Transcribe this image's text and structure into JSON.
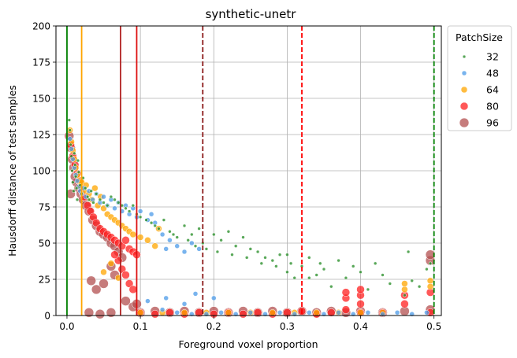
{
  "chart_data": {
    "type": "scatter",
    "title": "synthetic-unetr",
    "xlabel": "Foreground voxel proportion",
    "ylabel": "Hausdorff distance of test samples",
    "xlim": [
      -0.015,
      0.51
    ],
    "ylim": [
      0,
      200
    ],
    "x_ticks": [
      0.0,
      0.1,
      0.2,
      0.3,
      0.4,
      0.5
    ],
    "x_tick_labels": [
      "0.0",
      "0.1",
      "0.2",
      "0.3",
      "0.4",
      "0.5"
    ],
    "y_ticks": [
      0,
      25,
      50,
      75,
      100,
      125,
      150,
      175,
      200
    ],
    "y_tick_labels": [
      "0",
      "25",
      "50",
      "75",
      "100",
      "125",
      "150",
      "175",
      "200"
    ],
    "grid": true,
    "legend": {
      "title": "PatchSize",
      "placement": "outside-right-top",
      "entries": [
        "32",
        "48",
        "64",
        "80",
        "96"
      ]
    },
    "series": [
      {
        "name": "32",
        "color": "#228B22",
        "marker_size": 2,
        "points": [
          [
            0.003,
            135
          ],
          [
            0.004,
            128
          ],
          [
            0.005,
            118
          ],
          [
            0.006,
            110
          ],
          [
            0.007,
            100
          ],
          [
            0.008,
            92
          ],
          [
            0.009,
            86
          ],
          [
            0.01,
            112
          ],
          [
            0.011,
            104
          ],
          [
            0.012,
            96
          ],
          [
            0.013,
            88
          ],
          [
            0.014,
            80
          ],
          [
            0.015,
            107
          ],
          [
            0.016,
            99
          ],
          [
            0.018,
            90
          ],
          [
            0.02,
            84
          ],
          [
            0.022,
            95
          ],
          [
            0.025,
            88
          ],
          [
            0.028,
            82
          ],
          [
            0.03,
            80
          ],
          [
            0.033,
            86
          ],
          [
            0.036,
            78
          ],
          [
            0.04,
            84
          ],
          [
            0.045,
            80
          ],
          [
            0.05,
            78
          ],
          [
            0.055,
            76
          ],
          [
            0.06,
            82
          ],
          [
            0.065,
            80
          ],
          [
            0.07,
            78
          ],
          [
            0.075,
            76
          ],
          [
            0.08,
            74
          ],
          [
            0.085,
            72
          ],
          [
            0.09,
            76
          ],
          [
            0.095,
            70
          ],
          [
            0.1,
            68
          ],
          [
            0.108,
            66
          ],
          [
            0.115,
            64
          ],
          [
            0.12,
            62
          ],
          [
            0.125,
            60
          ],
          [
            0.132,
            66
          ],
          [
            0.14,
            58
          ],
          [
            0.145,
            56
          ],
          [
            0.15,
            54
          ],
          [
            0.16,
            62
          ],
          [
            0.165,
            52
          ],
          [
            0.17,
            56
          ],
          [
            0.175,
            48
          ],
          [
            0.18,
            60
          ],
          [
            0.185,
            50
          ],
          [
            0.19,
            46
          ],
          [
            0.2,
            56
          ],
          [
            0.205,
            44
          ],
          [
            0.21,
            52
          ],
          [
            0.22,
            58
          ],
          [
            0.225,
            42
          ],
          [
            0.23,
            48
          ],
          [
            0.24,
            54
          ],
          [
            0.245,
            40
          ],
          [
            0.25,
            46
          ],
          [
            0.26,
            44
          ],
          [
            0.265,
            36
          ],
          [
            0.27,
            40
          ],
          [
            0.28,
            38
          ],
          [
            0.285,
            34
          ],
          [
            0.29,
            42
          ],
          [
            0.3,
            30
          ],
          [
            0.305,
            36
          ],
          [
            0.31,
            26
          ],
          [
            0.32,
            34
          ],
          [
            0.33,
            40
          ],
          [
            0.34,
            28
          ],
          [
            0.345,
            36
          ],
          [
            0.35,
            32
          ],
          [
            0.36,
            20
          ],
          [
            0.37,
            38
          ],
          [
            0.38,
            26
          ],
          [
            0.39,
            34
          ],
          [
            0.4,
            30
          ],
          [
            0.41,
            18
          ],
          [
            0.42,
            36
          ],
          [
            0.43,
            28
          ],
          [
            0.44,
            22
          ],
          [
            0.46,
            14
          ],
          [
            0.465,
            44
          ],
          [
            0.47,
            24
          ],
          [
            0.48,
            20
          ],
          [
            0.49,
            32
          ],
          [
            0.495,
            36
          ],
          [
            0.3,
            42
          ],
          [
            0.33,
            26
          ]
        ]
      },
      {
        "name": "48",
        "color": "#4C9BE8",
        "marker_size": 3,
        "points": [
          [
            0.004,
            122
          ],
          [
            0.006,
            115
          ],
          [
            0.008,
            108
          ],
          [
            0.01,
            102
          ],
          [
            0.012,
            97
          ],
          [
            0.014,
            93
          ],
          [
            0.016,
            89
          ],
          [
            0.018,
            86
          ],
          [
            0.02,
            84
          ],
          [
            0.023,
            88
          ],
          [
            0.026,
            82
          ],
          [
            0.03,
            86
          ],
          [
            0.035,
            80
          ],
          [
            0.04,
            84
          ],
          [
            0.045,
            78
          ],
          [
            0.05,
            82
          ],
          [
            0.055,
            76
          ],
          [
            0.06,
            80
          ],
          [
            0.065,
            74
          ],
          [
            0.07,
            78
          ],
          [
            0.075,
            72
          ],
          [
            0.08,
            76
          ],
          [
            0.085,
            70
          ],
          [
            0.09,
            74
          ],
          [
            0.095,
            68
          ],
          [
            0.1,
            72
          ],
          [
            0.11,
            66
          ],
          [
            0.115,
            70
          ],
          [
            0.12,
            64
          ],
          [
            0.13,
            56
          ],
          [
            0.135,
            46
          ],
          [
            0.14,
            52
          ],
          [
            0.15,
            48
          ],
          [
            0.16,
            44
          ],
          [
            0.17,
            50
          ],
          [
            0.18,
            46
          ],
          [
            0.175,
            15
          ],
          [
            0.11,
            10
          ],
          [
            0.135,
            12
          ],
          [
            0.16,
            8
          ],
          [
            0.2,
            12
          ],
          [
            0.13,
            4
          ],
          [
            0.15,
            2
          ],
          [
            0.17,
            1
          ],
          [
            0.19,
            1
          ],
          [
            0.21,
            2
          ],
          [
            0.23,
            1
          ],
          [
            0.25,
            2
          ],
          [
            0.27,
            1
          ],
          [
            0.29,
            2
          ],
          [
            0.31,
            1
          ],
          [
            0.33,
            2
          ],
          [
            0.35,
            1
          ],
          [
            0.37,
            2
          ],
          [
            0.39,
            1
          ],
          [
            0.41,
            2
          ],
          [
            0.43,
            1
          ],
          [
            0.45,
            2
          ],
          [
            0.47,
            1
          ],
          [
            0.49,
            2
          ]
        ]
      },
      {
        "name": "64",
        "color": "#FFA500",
        "marker_size": 4,
        "points": [
          [
            0.004,
            128
          ],
          [
            0.006,
            120
          ],
          [
            0.008,
            114
          ],
          [
            0.01,
            108
          ],
          [
            0.012,
            102
          ],
          [
            0.014,
            97
          ],
          [
            0.016,
            93
          ],
          [
            0.018,
            89
          ],
          [
            0.02,
            92
          ],
          [
            0.023,
            86
          ],
          [
            0.026,
            90
          ],
          [
            0.03,
            84
          ],
          [
            0.034,
            80
          ],
          [
            0.038,
            88
          ],
          [
            0.042,
            76
          ],
          [
            0.046,
            82
          ],
          [
            0.05,
            74
          ],
          [
            0.055,
            70
          ],
          [
            0.06,
            68
          ],
          [
            0.065,
            66
          ],
          [
            0.07,
            64
          ],
          [
            0.075,
            62
          ],
          [
            0.08,
            60
          ],
          [
            0.085,
            58
          ],
          [
            0.09,
            56
          ],
          [
            0.1,
            54
          ],
          [
            0.11,
            52
          ],
          [
            0.12,
            48
          ],
          [
            0.125,
            60
          ],
          [
            0.05,
            30
          ],
          [
            0.06,
            36
          ],
          [
            0.07,
            26
          ],
          [
            0.495,
            24
          ],
          [
            0.495,
            20
          ],
          [
            0.46,
            18
          ],
          [
            0.46,
            22
          ],
          [
            0.43,
            2
          ],
          [
            0.4,
            2
          ],
          [
            0.37,
            2
          ],
          [
            0.34,
            2
          ],
          [
            0.31,
            2
          ],
          [
            0.28,
            2
          ],
          [
            0.25,
            2
          ],
          [
            0.22,
            2
          ],
          [
            0.19,
            2
          ],
          [
            0.16,
            2
          ],
          [
            0.13,
            2
          ],
          [
            0.1,
            2
          ]
        ]
      },
      {
        "name": "80",
        "color": "#FF2020",
        "marker_size": 5,
        "points": [
          [
            0.005,
            118
          ],
          [
            0.008,
            110
          ],
          [
            0.011,
            104
          ],
          [
            0.014,
            98
          ],
          [
            0.017,
            93
          ],
          [
            0.02,
            88
          ],
          [
            0.024,
            82
          ],
          [
            0.028,
            76
          ],
          [
            0.032,
            72
          ],
          [
            0.036,
            68
          ],
          [
            0.04,
            64
          ],
          [
            0.045,
            60
          ],
          [
            0.05,
            58
          ],
          [
            0.055,
            56
          ],
          [
            0.06,
            54
          ],
          [
            0.065,
            52
          ],
          [
            0.07,
            50
          ],
          [
            0.075,
            48
          ],
          [
            0.08,
            52
          ],
          [
            0.085,
            46
          ],
          [
            0.09,
            44
          ],
          [
            0.095,
            42
          ],
          [
            0.07,
            38
          ],
          [
            0.075,
            32
          ],
          [
            0.08,
            28
          ],
          [
            0.085,
            22
          ],
          [
            0.09,
            18
          ],
          [
            0.065,
            42
          ],
          [
            0.1,
            2
          ],
          [
            0.12,
            1
          ],
          [
            0.14,
            2
          ],
          [
            0.16,
            1
          ],
          [
            0.18,
            2
          ],
          [
            0.2,
            1
          ],
          [
            0.22,
            2
          ],
          [
            0.24,
            1
          ],
          [
            0.26,
            2
          ],
          [
            0.28,
            1
          ],
          [
            0.3,
            2
          ],
          [
            0.32,
            3
          ],
          [
            0.34,
            1
          ],
          [
            0.36,
            2
          ],
          [
            0.38,
            4
          ],
          [
            0.38,
            12
          ],
          [
            0.38,
            16
          ],
          [
            0.4,
            8
          ],
          [
            0.4,
            14
          ],
          [
            0.4,
            18
          ],
          [
            0.4,
            2
          ],
          [
            0.43,
            2
          ],
          [
            0.46,
            8
          ],
          [
            0.46,
            14
          ],
          [
            0.495,
            16
          ],
          [
            0.495,
            2
          ]
        ]
      },
      {
        "name": "96",
        "color": "#B35050",
        "marker_size": 6,
        "points": [
          [
            0.003,
            124
          ],
          [
            0.005,
            116
          ],
          [
            0.007,
            108
          ],
          [
            0.009,
            102
          ],
          [
            0.011,
            96
          ],
          [
            0.013,
            92
          ],
          [
            0.016,
            88
          ],
          [
            0.019,
            84
          ],
          [
            0.022,
            80
          ],
          [
            0.026,
            76
          ],
          [
            0.03,
            72
          ],
          [
            0.035,
            66
          ],
          [
            0.04,
            62
          ],
          [
            0.045,
            58
          ],
          [
            0.05,
            56
          ],
          [
            0.055,
            54
          ],
          [
            0.06,
            50
          ],
          [
            0.065,
            48
          ],
          [
            0.07,
            44
          ],
          [
            0.075,
            40
          ],
          [
            0.005,
            84
          ],
          [
            0.06,
            34
          ],
          [
            0.065,
            28
          ],
          [
            0.05,
            22
          ],
          [
            0.08,
            10
          ],
          [
            0.09,
            6
          ],
          [
            0.095,
            8
          ],
          [
            0.033,
            24
          ],
          [
            0.04,
            18
          ],
          [
            0.1,
            2
          ],
          [
            0.12,
            3
          ],
          [
            0.14,
            2
          ],
          [
            0.16,
            3
          ],
          [
            0.18,
            2
          ],
          [
            0.2,
            3
          ],
          [
            0.22,
            2
          ],
          [
            0.24,
            3
          ],
          [
            0.26,
            2
          ],
          [
            0.28,
            3
          ],
          [
            0.3,
            2
          ],
          [
            0.32,
            3
          ],
          [
            0.34,
            2
          ],
          [
            0.36,
            3
          ],
          [
            0.38,
            2
          ],
          [
            0.4,
            3
          ],
          [
            0.43,
            2
          ],
          [
            0.46,
            3
          ],
          [
            0.495,
            38
          ],
          [
            0.495,
            42
          ],
          [
            0.495,
            4
          ],
          [
            0.03,
            2
          ],
          [
            0.045,
            1
          ],
          [
            0.06,
            2
          ]
        ]
      }
    ],
    "vertical_lines": [
      {
        "x": 0.0,
        "color": "#008000",
        "style": "solid"
      },
      {
        "x": 0.02,
        "color": "#FFA500",
        "style": "solid"
      },
      {
        "x": 0.073,
        "color": "#B22222",
        "style": "solid"
      },
      {
        "x": 0.095,
        "color": "#DD1111",
        "style": "solid"
      },
      {
        "x": 0.185,
        "color": "#8B1A1A",
        "style": "dashed"
      },
      {
        "x": 0.32,
        "color": "#FF0000",
        "style": "dashed"
      },
      {
        "x": 0.5,
        "color": "#008000",
        "style": "dashed"
      }
    ]
  }
}
